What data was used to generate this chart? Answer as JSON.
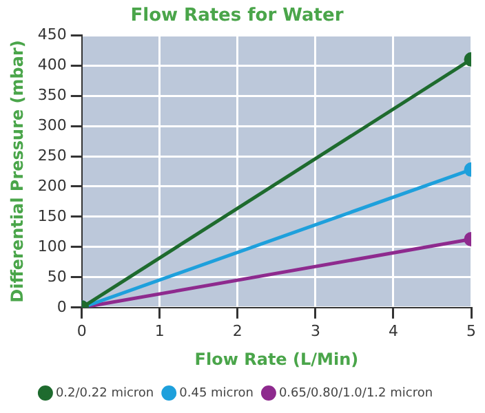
{
  "chart_data": {
    "type": "line",
    "title": "Flow Rates for Water",
    "xlabel": "Flow Rate (L/Min)",
    "ylabel": "Differential Pressure (mbar)",
    "x": [
      0,
      5
    ],
    "series": [
      {
        "name": "0.2/0.22 micron",
        "color": "#1e6b2e",
        "values": [
          0,
          410
        ]
      },
      {
        "name": "0.45 micron",
        "color": "#1ea0dc",
        "values": [
          0,
          228
        ]
      },
      {
        "name": "0.65/0.80/1.0/1.2 micron",
        "color": "#8e2a8e",
        "values": [
          0,
          113
        ]
      }
    ],
    "xlim": [
      0,
      5
    ],
    "xticks": [
      0,
      1,
      2,
      3,
      4,
      5
    ],
    "ylim": [
      0,
      450
    ],
    "yticks": [
      0,
      50,
      100,
      150,
      200,
      250,
      300,
      350,
      400,
      450
    ],
    "grid": true,
    "legend": "bottom",
    "marker": "circle",
    "line_style": "solid"
  }
}
